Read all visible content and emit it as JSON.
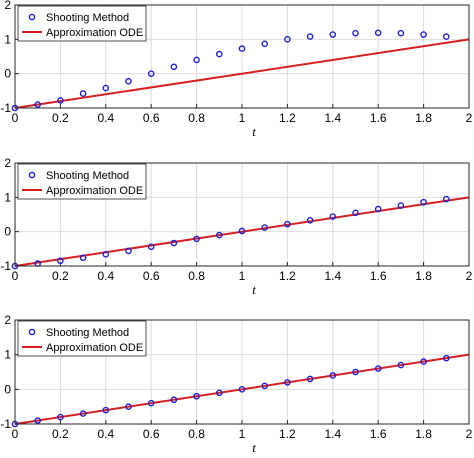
{
  "chart_data": [
    {
      "type": "line",
      "xlabel": "t",
      "ylabel": "",
      "xlim": [
        0,
        2
      ],
      "ylim": [
        -1,
        2
      ],
      "xticks": [
        "0",
        "0.2",
        "0.4",
        "0.6",
        "0.8",
        "1",
        "1.2",
        "1.4",
        "1.6",
        "1.8",
        "2"
      ],
      "yticks": [
        "-1",
        "0",
        "1",
        "2"
      ],
      "grid": true,
      "legend_position": "top-left",
      "series": [
        {
          "name": "Shooting Method",
          "style": "markers",
          "color": "#1f1fd6",
          "x": [
            0,
            0.1,
            0.2,
            0.3,
            0.4,
            0.5,
            0.6,
            0.7,
            0.8,
            0.9,
            1.0,
            1.1,
            1.2,
            1.3,
            1.4,
            1.5,
            1.6,
            1.7,
            1.8,
            1.9
          ],
          "y": [
            -1.0,
            -0.9,
            -0.78,
            -0.58,
            -0.42,
            -0.22,
            0.0,
            0.2,
            0.4,
            0.57,
            0.73,
            0.87,
            1.0,
            1.08,
            1.14,
            1.18,
            1.19,
            1.18,
            1.14,
            1.08
          ]
        },
        {
          "name": "Approximation ODE",
          "style": "line",
          "color": "#d62020",
          "x": [
            0,
            2
          ],
          "y": [
            -1.0,
            1.0
          ]
        }
      ]
    },
    {
      "type": "line",
      "xlabel": "t",
      "ylabel": "",
      "xlim": [
        0,
        2
      ],
      "ylim": [
        -1,
        2
      ],
      "xticks": [
        "0",
        "0.2",
        "0.4",
        "0.6",
        "0.8",
        "1",
        "1.2",
        "1.4",
        "1.6",
        "1.8",
        "2"
      ],
      "yticks": [
        "-1",
        "0",
        "1",
        "2"
      ],
      "grid": true,
      "legend_position": "top-left",
      "series": [
        {
          "name": "Shooting Method",
          "style": "markers",
          "color": "#1f1fd6",
          "x": [
            0,
            0.1,
            0.2,
            0.3,
            0.4,
            0.5,
            0.6,
            0.7,
            0.8,
            0.9,
            1.0,
            1.1,
            1.2,
            1.3,
            1.4,
            1.5,
            1.6,
            1.7,
            1.8,
            1.9
          ],
          "y": [
            -1.0,
            -0.93,
            -0.85,
            -0.76,
            -0.66,
            -0.56,
            -0.44,
            -0.33,
            -0.21,
            -0.1,
            0.02,
            0.12,
            0.22,
            0.33,
            0.44,
            0.55,
            0.66,
            0.76,
            0.86,
            0.95
          ]
        },
        {
          "name": "Approximation ODE",
          "style": "line",
          "color": "#d62020",
          "x": [
            0,
            2
          ],
          "y": [
            -1.0,
            1.0
          ]
        }
      ]
    },
    {
      "type": "line",
      "xlabel": "t",
      "ylabel": "",
      "xlim": [
        0,
        2
      ],
      "ylim": [
        -1,
        2
      ],
      "xticks": [
        "0",
        "0.2",
        "0.4",
        "0.6",
        "0.8",
        "1",
        "1.2",
        "1.4",
        "1.6",
        "1.8",
        "2"
      ],
      "yticks": [
        "-1",
        "0",
        "1",
        "2"
      ],
      "grid": true,
      "legend_position": "top-left",
      "series": [
        {
          "name": "Shooting Method",
          "style": "markers",
          "color": "#1f1fd6",
          "x": [
            0,
            0.1,
            0.2,
            0.3,
            0.4,
            0.5,
            0.6,
            0.7,
            0.8,
            0.9,
            1.0,
            1.1,
            1.2,
            1.3,
            1.4,
            1.5,
            1.6,
            1.7,
            1.8,
            1.9
          ],
          "y": [
            -1.0,
            -0.9,
            -0.8,
            -0.7,
            -0.6,
            -0.5,
            -0.4,
            -0.3,
            -0.2,
            -0.1,
            0.0,
            0.1,
            0.2,
            0.3,
            0.4,
            0.5,
            0.6,
            0.7,
            0.8,
            0.9
          ]
        },
        {
          "name": "Approximation ODE",
          "style": "line",
          "color": "#d62020",
          "x": [
            0,
            2
          ],
          "y": [
            -1.0,
            1.0
          ]
        }
      ]
    }
  ]
}
